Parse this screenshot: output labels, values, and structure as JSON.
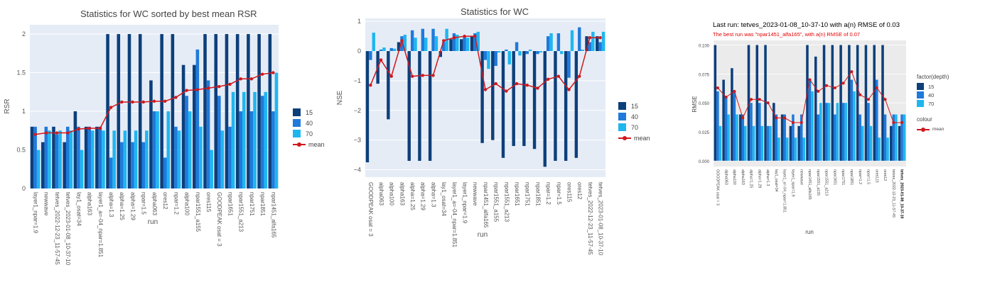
{
  "colors": {
    "d15": "#0d3f7a",
    "d40": "#1f7adb",
    "d70": "#1fb6f0",
    "mean": "#d0181c",
    "plotly_bg": "#e5ecf6",
    "ggplot_bg": "#ebebeb"
  },
  "legend_plotly": [
    "15",
    "40",
    "70",
    "mean"
  ],
  "legend_ggplot": {
    "fill_title": "factor(depth)",
    "fills": [
      "15",
      "40",
      "70"
    ],
    "colour_title": "colour",
    "colour_items": [
      "mean"
    ]
  },
  "chart_data": [
    {
      "type": "bar",
      "title": "Statistics for WC sorted by best mean RSR",
      "xlabel": "run",
      "ylabel": "RSR",
      "ylim": [
        0,
        2.12
      ],
      "yticks": [
        0,
        0.5,
        1,
        1.5,
        2
      ],
      "yticklabels": [
        "0",
        "0.5",
        "1",
        "1.5",
        "2"
      ],
      "categories": [
        "layer1_npar=1.9",
        "newwave",
        "tetves_2022-12-23_11-57-45",
        "tetves_2023-01-08_10-37-10",
        "lay1_osat=34",
        "alpha163",
        "layer1_a=-04_npar=1.851",
        "alpha=1.3",
        "alpha=1.25",
        "alpha=1.29",
        "npar=1.5",
        "alpha063",
        "ores12",
        "npar=1.2",
        "alpha100",
        "npar1551_a155",
        "ores115",
        "GOODPEAK osat = 3",
        "npar1651",
        "npar1551_a213",
        "npar1751",
        "npar1851",
        "npar1451_alfa165"
      ],
      "series": [
        {
          "name": "15",
          "values": [
            0.8,
            0.6,
            0.8,
            0.6,
            1.0,
            0.8,
            0.8,
            2.0,
            2.0,
            2.0,
            2.0,
            1.4,
            2.0,
            2.0,
            1.6,
            1.6,
            2.0,
            2.0,
            2.0,
            2.0,
            2.0,
            2.0,
            2.0
          ]
        },
        {
          "name": "40",
          "values": [
            0.8,
            0.8,
            0.7,
            0.8,
            0.8,
            0.8,
            0.8,
            0.4,
            0.6,
            0.6,
            0.6,
            1.0,
            0.4,
            0.8,
            1.2,
            1.8,
            1.4,
            1.2,
            0.8,
            1.0,
            1.0,
            1.2,
            1.0
          ]
        },
        {
          "name": "70",
          "values": [
            0.5,
            0.75,
            0.75,
            0.75,
            0.5,
            0.75,
            0.75,
            0.75,
            0.75,
            0.75,
            0.75,
            1.0,
            1.0,
            0.75,
            1.0,
            0.8,
            0.5,
            0.75,
            1.25,
            1.25,
            1.25,
            1.25,
            1.5
          ]
        },
        {
          "name": "mean",
          "type": "line",
          "values": [
            0.7,
            0.72,
            0.72,
            0.72,
            0.77,
            0.78,
            0.78,
            1.05,
            1.12,
            1.12,
            1.12,
            1.13,
            1.13,
            1.18,
            1.27,
            1.28,
            1.3,
            1.32,
            1.35,
            1.42,
            1.42,
            1.48,
            1.5
          ]
        }
      ]
    },
    {
      "type": "bar",
      "title": "Statistics for WC",
      "xlabel": "run",
      "ylabel": "NSE",
      "ylim": [
        -4.25,
        1.1
      ],
      "yticks": [
        1,
        0,
        -1,
        -2,
        -3,
        -4
      ],
      "yticklabels": [
        "1",
        "0",
        "−1",
        "−2",
        "−3",
        "−4"
      ],
      "categories": [
        "GOODPEAK osat = 3",
        "alpha063",
        "alpha100",
        "alpha163",
        "alpha=1.25",
        "alpha=1.29",
        "alpha=1.3",
        "lay1_osat=34",
        "layer1_a=-04_npar=1.851",
        "layer1_npar=1.9",
        "newwave",
        "npar1451_alfa165",
        "npar1551_a155",
        "npar1551_a213",
        "npar1651",
        "npar1751",
        "npar1851",
        "npar=1.2",
        "npar=1.5",
        "ores115",
        "ores12",
        "tetves_2022-12-23_11-57-45",
        "tetves_2023-01-08_10-37-10"
      ],
      "series": [
        {
          "name": "15",
          "values": [
            -3.75,
            -1.1,
            -2.3,
            0.3,
            -3.7,
            -3.7,
            -3.7,
            -0.2,
            0.4,
            0.4,
            0.5,
            -3.1,
            -3.0,
            -3.6,
            -3.2,
            -3.2,
            -3.3,
            -3.9,
            -3.7,
            -3.7,
            -3.6,
            0.5,
            0.5
          ]
        },
        {
          "name": "40",
          "values": [
            -0.3,
            0.05,
            0.1,
            0.5,
            0.7,
            0.75,
            0.75,
            0.3,
            0.6,
            0.5,
            0.6,
            -0.3,
            -0.5,
            0.05,
            0.3,
            -0.1,
            -0.1,
            0.5,
            0.6,
            -0.9,
            0.8,
            0.3,
            0.3
          ]
        },
        {
          "name": "70",
          "values": [
            0.62,
            0.12,
            0.08,
            0.55,
            0.45,
            0.45,
            0.5,
            0.75,
            0.55,
            0.45,
            0.65,
            -0.6,
            -0.05,
            -0.45,
            -0.15,
            0.05,
            -0.05,
            0.6,
            -0.1,
            0.7,
            0.05,
            0.65,
            0.65
          ]
        },
        {
          "name": "mean",
          "type": "line",
          "values": [
            -1.15,
            -0.3,
            -0.85,
            0.35,
            -0.85,
            -0.82,
            -0.82,
            0.35,
            0.45,
            0.5,
            0.5,
            -1.3,
            -1.1,
            -1.35,
            -1.1,
            -1.15,
            -1.25,
            -0.95,
            -0.85,
            -1.3,
            -0.85,
            0.45,
            0.45
          ]
        }
      ]
    },
    {
      "type": "bar",
      "title": "Last run: tetves_2023-01-08_10-37-10 with a(n)  RMSE of 0.03",
      "subtitle": "The best run was \"npar1451_alfa165\", with a(n) RMSE of 0.07",
      "xlabel": "run",
      "ylabel": "RMSE",
      "ylim": [
        -0.005,
        0.104
      ],
      "yticks": [
        0,
        0.025,
        0.05,
        0.075,
        0.1
      ],
      "yticklabels": [
        "0.000",
        "0.025",
        "0.050",
        "0.075",
        "0.100"
      ],
      "categories": [
        "GOODPEAK osat = 3",
        "alpha063",
        "alpha100",
        "alpha163",
        "alpha=1.25",
        "alpha=1.29",
        "alpha=1.3",
        "lay1_osat=34",
        "layer1_a=-04_npar=1.851",
        "layer1_npar=1.9",
        "newwave",
        "npar1451_alfa165",
        "npar1551_a155",
        "npar1551_a213",
        "npar1651",
        "npar1751",
        "npar1851",
        "npar=1.2",
        "npar=1.5",
        "ores115",
        "ores12",
        "tetves_2022-12-23_11-57-45",
        "tetves_2023-01-08_10-37-10"
      ],
      "bold_category": "tetves_2023-01-08_10-37-10",
      "series": [
        {
          "name": "15",
          "values": [
            0.1,
            0.07,
            0.08,
            0.04,
            0.1,
            0.1,
            0.1,
            0.05,
            0.04,
            0.03,
            0.03,
            0.1,
            0.09,
            0.1,
            0.1,
            0.1,
            0.1,
            0.1,
            0.1,
            0.1,
            0.1,
            0.03,
            0.03
          ]
        },
        {
          "name": "40",
          "values": [
            0.06,
            0.055,
            0.06,
            0.04,
            0.05,
            0.05,
            0.03,
            0.04,
            0.04,
            0.04,
            0.04,
            0.07,
            0.04,
            0.05,
            0.04,
            0.05,
            0.07,
            0.04,
            0.05,
            0.07,
            0.04,
            0.04,
            0.04
          ]
        },
        {
          "name": "70",
          "values": [
            0.03,
            0.04,
            0.04,
            0.03,
            0.03,
            0.03,
            0.03,
            0.02,
            0.02,
            0.02,
            0.02,
            0.06,
            0.05,
            0.05,
            0.05,
            0.05,
            0.06,
            0.03,
            0.03,
            0.02,
            0.02,
            0.04,
            0.04
          ]
        },
        {
          "name": "mean",
          "type": "line",
          "values": [
            0.063,
            0.055,
            0.06,
            0.037,
            0.053,
            0.053,
            0.05,
            0.037,
            0.037,
            0.033,
            0.033,
            0.07,
            0.06,
            0.065,
            0.063,
            0.067,
            0.077,
            0.057,
            0.053,
            0.063,
            0.053,
            0.033,
            0.033
          ]
        }
      ]
    }
  ]
}
